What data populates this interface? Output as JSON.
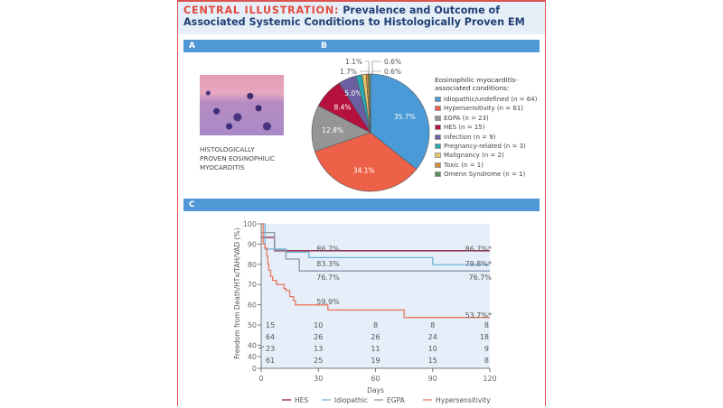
{
  "header": {
    "keyword": "CENTRAL ILLUSTRATION:",
    "title": "Prevalence and Outcome of Associated Systemic Conditions to Histologically Proven EM"
  },
  "panels": {
    "a": "A",
    "b": "B",
    "c": "C"
  },
  "panel_a": {
    "caption_lines": [
      "HISTOLOGICALLY",
      "PROVEN EOSINOPHILIC",
      "MYOCARDITIS"
    ]
  },
  "chart_data": [
    {
      "type": "pie",
      "legend_title": "Eosinophilic myocarditis-associated conditions:",
      "slices": [
        {
          "label": "Idiopathic/undefined (n = 64)",
          "value": 35.7,
          "display": "35.7%",
          "color": "#4a9ad8"
        },
        {
          "label": "Hypersensitivity (n = 61)",
          "value": 34.1,
          "display": "34.1%",
          "color": "#ee6149"
        },
        {
          "label": "EGPA (n = 23)",
          "value": 12.8,
          "display": "12.8%",
          "color": "#959595"
        },
        {
          "label": "HES (n = 15)",
          "value": 8.4,
          "display": "8.4%",
          "color": "#b5103e"
        },
        {
          "label": "Infection (n = 9)",
          "value": 5.0,
          "display": "5.0%",
          "color": "#6a5fa0"
        },
        {
          "label": "Pregnancy-related (n = 3)",
          "value": 1.7,
          "display": "1.7%",
          "color": "#2aa6b0"
        },
        {
          "label": "Malignancy (n = 2)",
          "value": 1.1,
          "display": "1.1%",
          "color": "#e8c46a"
        },
        {
          "label": "Toxic (n = 1)",
          "value": 0.6,
          "display": "0.6%",
          "color": "#d8883c"
        },
        {
          "label": "Omenn Syndrome (n = 1)",
          "value": 0.6,
          "display": "0.6%",
          "color": "#5c8f5c"
        }
      ]
    },
    {
      "type": "line",
      "subtype": "kaplan-meier",
      "xlabel": "Days",
      "ylabel": "Freedom from Death/HTx/TAH/VAD (%)",
      "xlim": [
        0,
        120
      ],
      "xticks": [
        0,
        30,
        60,
        90,
        120
      ],
      "yticks": [
        "100",
        "90",
        "80",
        "70",
        "60",
        "50",
        "40",
        "40",
        "0"
      ],
      "broken_y_axis": true,
      "series": [
        {
          "name": "HES",
          "color": "#8e1b3a",
          "steps": [
            [
              0,
              93.3
            ],
            [
              7,
              86.7
            ],
            [
              120,
              86.7
            ]
          ]
        },
        {
          "name": "Idiopathic",
          "color": "#6fb3d8",
          "steps": [
            [
              0,
              100
            ],
            [
              2,
              87.5
            ],
            [
              13,
              86
            ],
            [
              25,
              83.3
            ],
            [
              90,
              79.8
            ],
            [
              120,
              79.8
            ]
          ]
        },
        {
          "name": "EGPA",
          "color": "#8a98aa",
          "steps": [
            [
              0,
              95.7
            ],
            [
              7,
              87
            ],
            [
              13,
              82.6
            ],
            [
              20,
              76.7
            ],
            [
              120,
              76.7
            ]
          ]
        },
        {
          "name": "Hypersensitivity",
          "color": "#e8785f",
          "steps": [
            [
              0,
              100
            ],
            [
              1,
              90
            ],
            [
              2,
              88
            ],
            [
              3,
              84
            ],
            [
              3.5,
              80
            ],
            [
              4,
              77
            ],
            [
              5,
              74
            ],
            [
              6,
              72
            ],
            [
              8,
              70
            ],
            [
              12,
              68
            ],
            [
              13,
              67
            ],
            [
              15,
              64
            ],
            [
              17,
              62
            ],
            [
              18,
              59.9
            ],
            [
              35,
              57.4
            ],
            [
              75,
              53.7
            ],
            [
              120,
              53.7
            ]
          ]
        }
      ],
      "annotations": [
        {
          "text": "86.7%",
          "x": 30,
          "y": 87.8
        },
        {
          "text": "86.7%*",
          "x": 120,
          "y": 87.8
        },
        {
          "text": "83.3%",
          "x": 30,
          "y": 80.4
        },
        {
          "text": "79.8%*",
          "x": 120,
          "y": 80.4
        },
        {
          "text": "76.7%",
          "x": 30,
          "y": 73.6
        },
        {
          "text": "76.7%",
          "x": 120,
          "y": 73.6
        },
        {
          "text": "59.9%",
          "x": 30,
          "y": 61.5
        },
        {
          "text": "53.7%*",
          "x": 120,
          "y": 55
        }
      ],
      "at_risk": {
        "x": [
          0,
          30,
          60,
          90,
          120
        ],
        "rows": [
          [
            "15",
            "10",
            "8",
            "8",
            "8"
          ],
          [
            "64",
            "26",
            "26",
            "24",
            "18"
          ],
          [
            "23",
            "13",
            "11",
            "10",
            "9"
          ],
          [
            "61",
            "25",
            "19",
            "15",
            "8"
          ]
        ]
      }
    }
  ]
}
